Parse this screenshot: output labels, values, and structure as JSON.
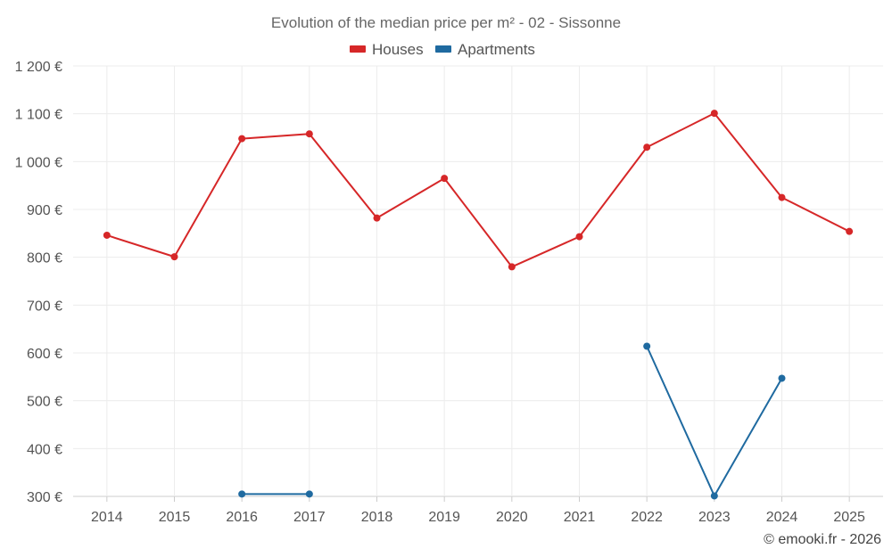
{
  "chart_data": {
    "type": "line",
    "title": "Evolution of the median price per m² - 02 - Sissonne",
    "categories": [
      "2014",
      "2015",
      "2016",
      "2017",
      "2018",
      "2019",
      "2020",
      "2021",
      "2022",
      "2023",
      "2024",
      "2025"
    ],
    "series": [
      {
        "name": "Houses",
        "color": "#d62728",
        "values": [
          846,
          801,
          1048,
          1058,
          882,
          965,
          780,
          843,
          1030,
          1101,
          925,
          854
        ]
      },
      {
        "name": "Apartments",
        "color": "#1f6aa0",
        "values": [
          null,
          null,
          305,
          305,
          null,
          null,
          null,
          null,
          614,
          301,
          547,
          null
        ]
      }
    ],
    "ylim": [
      300,
      1200
    ],
    "yticks": [
      300,
      400,
      500,
      600,
      700,
      800,
      900,
      1000,
      1100,
      1200
    ],
    "ytick_labels": [
      "300 €",
      "400 €",
      "500 €",
      "600 €",
      "700 €",
      "800 €",
      "900 €",
      "1 000 €",
      "1 100 €",
      "1 200 €"
    ],
    "legend": "top-center",
    "grid": true
  },
  "credit": "© emooki.fr - 2026"
}
